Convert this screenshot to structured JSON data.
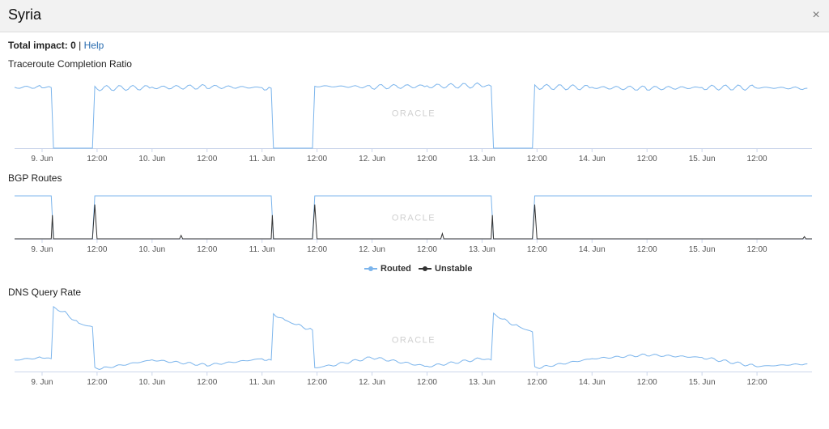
{
  "header": {
    "title": "Syria",
    "close_symbol": "×"
  },
  "impact": {
    "label": "Total impact: 0",
    "separator": "|",
    "help": "Help"
  },
  "watermark": "ORACLE",
  "colors": {
    "routed": "#7cb5ec",
    "unstable": "#333333",
    "axis": "#ccd6eb"
  },
  "legend": [
    {
      "name": "Routed",
      "color": "#7cb5ec"
    },
    {
      "name": "Unstable",
      "color": "#333333"
    }
  ],
  "chart_data": [
    {
      "id": "traceroute",
      "type": "line",
      "title": "Traceroute Completion Ratio",
      "x_range": [
        "2019-06-08T18:00",
        "2019-06-16T00:00"
      ],
      "x_ticks": [
        "9. Jun",
        "12:00",
        "10. Jun",
        "12:00",
        "11. Jun",
        "12:00",
        "12. Jun",
        "12:00",
        "13. Jun",
        "12:00",
        "14. Jun",
        "12:00",
        "15. Jun",
        "12:00"
      ],
      "ylim": [
        0,
        1
      ],
      "series": [
        {
          "color": "#7cb5ec",
          "x": [
            "2019-06-08T18:00",
            "2019-06-09T00:00",
            "2019-06-09T02:00",
            "2019-06-09T02:30",
            "2019-06-09T11:00",
            "2019-06-09T11:30",
            "2019-06-10T00:00",
            "2019-06-10T12:00",
            "2019-06-11T00:00",
            "2019-06-11T02:00",
            "2019-06-11T02:30",
            "2019-06-11T11:00",
            "2019-06-11T11:30",
            "2019-06-12T00:00",
            "2019-06-12T12:00",
            "2019-06-13T00:00",
            "2019-06-13T02:00",
            "2019-06-13T02:30",
            "2019-06-13T11:00",
            "2019-06-13T11:30",
            "2019-06-14T00:00",
            "2019-06-14T12:00",
            "2019-06-15T00:00",
            "2019-06-15T12:00",
            "2019-06-15T23:00"
          ],
          "values": [
            0.86,
            0.87,
            0.86,
            0.0,
            0.0,
            0.85,
            0.86,
            0.87,
            0.86,
            0.85,
            0.0,
            0.0,
            0.88,
            0.87,
            0.88,
            0.89,
            0.88,
            0.0,
            0.0,
            0.87,
            0.86,
            0.85,
            0.86,
            0.86,
            0.85
          ]
        }
      ]
    },
    {
      "id": "bgp",
      "type": "line",
      "title": "BGP Routes",
      "x_range": [
        "2019-06-08T18:00",
        "2019-06-16T00:00"
      ],
      "x_ticks": [
        "9. Jun",
        "12:00",
        "10. Jun",
        "12:00",
        "11. Jun",
        "12:00",
        "12. Jun",
        "12:00",
        "13. Jun",
        "12:00",
        "14. Jun",
        "12:00",
        "15. Jun",
        "12:00"
      ],
      "ylim": [
        0,
        1
      ],
      "series": [
        {
          "name": "Routed",
          "color": "#7cb5ec",
          "x": [
            "2019-06-08T18:00",
            "2019-06-09T02:00",
            "2019-06-09T02:30",
            "2019-06-09T11:00",
            "2019-06-09T11:30",
            "2019-06-11T02:00",
            "2019-06-11T02:30",
            "2019-06-11T11:00",
            "2019-06-11T11:30",
            "2019-06-13T02:00",
            "2019-06-13T02:30",
            "2019-06-13T11:00",
            "2019-06-13T11:30",
            "2019-06-16T00:00"
          ],
          "values": [
            1.0,
            1.0,
            0.0,
            0.0,
            1.0,
            1.0,
            0.0,
            0.0,
            1.0,
            1.0,
            0.0,
            0.0,
            1.0,
            1.0
          ]
        },
        {
          "name": "Unstable",
          "color": "#333333",
          "x": [
            "2019-06-08T18:00",
            "2019-06-09T02:00",
            "2019-06-09T02:15",
            "2019-06-09T02:30",
            "2019-06-09T11:00",
            "2019-06-09T11:30",
            "2019-06-09T12:00",
            "2019-06-10T06:00",
            "2019-06-10T06:20",
            "2019-06-10T06:40",
            "2019-06-11T02:00",
            "2019-06-11T02:15",
            "2019-06-11T02:30",
            "2019-06-11T11:00",
            "2019-06-11T11:30",
            "2019-06-11T12:00",
            "2019-06-12T15:00",
            "2019-06-12T15:20",
            "2019-06-12T15:40",
            "2019-06-13T02:00",
            "2019-06-13T02:15",
            "2019-06-13T02:30",
            "2019-06-13T11:00",
            "2019-06-13T11:30",
            "2019-06-13T12:00",
            "2019-06-15T22:00",
            "2019-06-15T22:20",
            "2019-06-15T22:40",
            "2019-06-16T00:00"
          ],
          "values": [
            0.0,
            0.0,
            0.55,
            0.0,
            0.0,
            0.8,
            0.0,
            0.0,
            0.08,
            0.0,
            0.0,
            0.55,
            0.0,
            0.0,
            0.8,
            0.0,
            0.0,
            0.12,
            0.0,
            0.0,
            0.55,
            0.0,
            0.0,
            0.8,
            0.0,
            0.0,
            0.05,
            0.0,
            0.0
          ]
        }
      ]
    },
    {
      "id": "dns",
      "type": "line",
      "title": "DNS Query Rate",
      "x_range": [
        "2019-06-08T18:00",
        "2019-06-16T00:00"
      ],
      "x_ticks": [
        "9. Jun",
        "12:00",
        "10. Jun",
        "12:00",
        "11. Jun",
        "12:00",
        "12. Jun",
        "12:00",
        "13. Jun",
        "12:00",
        "14. Jun",
        "12:00",
        "15. Jun",
        "12:00"
      ],
      "ylim": [
        0,
        1
      ],
      "series": [
        {
          "color": "#7cb5ec",
          "x": [
            "2019-06-08T18:00",
            "2019-06-09T00:00",
            "2019-06-09T02:00",
            "2019-06-09T02:30",
            "2019-06-09T05:00",
            "2019-06-09T08:00",
            "2019-06-09T11:00",
            "2019-06-09T11:30",
            "2019-06-09T14:00",
            "2019-06-10T00:00",
            "2019-06-10T12:00",
            "2019-06-11T00:00",
            "2019-06-11T02:00",
            "2019-06-11T02:30",
            "2019-06-11T05:00",
            "2019-06-11T08:00",
            "2019-06-11T11:00",
            "2019-06-11T11:30",
            "2019-06-11T14:00",
            "2019-06-12T00:00",
            "2019-06-12T12:00",
            "2019-06-13T00:00",
            "2019-06-13T02:00",
            "2019-06-13T02:30",
            "2019-06-13T05:00",
            "2019-06-13T08:00",
            "2019-06-13T11:00",
            "2019-06-13T11:30",
            "2019-06-13T14:00",
            "2019-06-14T00:00",
            "2019-06-14T12:00",
            "2019-06-15T00:00",
            "2019-06-15T12:00",
            "2019-06-15T23:00"
          ],
          "values": [
            0.18,
            0.22,
            0.2,
            1.0,
            0.92,
            0.75,
            0.7,
            0.05,
            0.06,
            0.18,
            0.1,
            0.2,
            0.18,
            0.9,
            0.8,
            0.72,
            0.65,
            0.06,
            0.08,
            0.22,
            0.08,
            0.2,
            0.18,
            0.9,
            0.8,
            0.7,
            0.62,
            0.06,
            0.08,
            0.2,
            0.26,
            0.22,
            0.08,
            0.12
          ]
        }
      ]
    }
  ]
}
